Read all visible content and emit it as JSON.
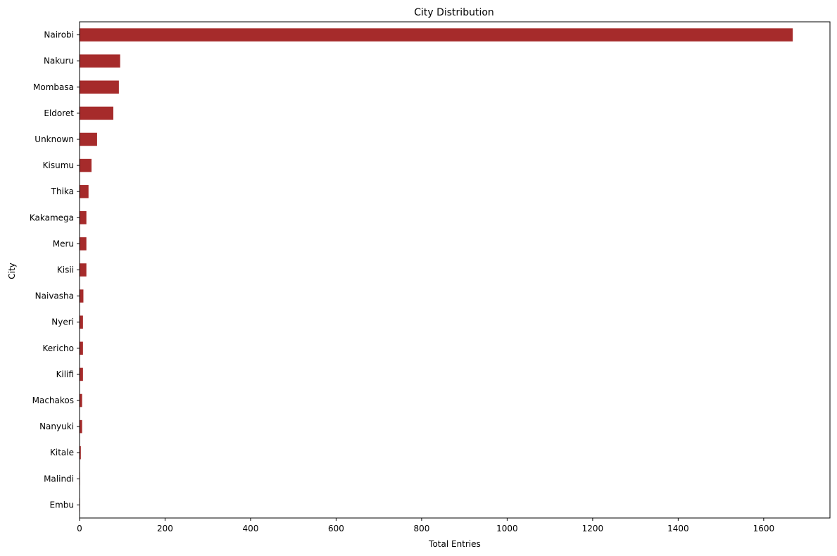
{
  "chart_data": {
    "type": "bar",
    "orientation": "horizontal",
    "title": "City Distribution",
    "xlabel": "Total Entries",
    "ylabel": "City",
    "xlim": [
      0,
      1755
    ],
    "xticks": [
      0,
      200,
      400,
      600,
      800,
      1000,
      1200,
      1400,
      1600
    ],
    "xtick_labels": [
      "0",
      "200",
      "400",
      "600",
      "800",
      "1000",
      "1200",
      "1400",
      "1600"
    ],
    "grid": false,
    "bar_color": "#A62B2B",
    "categories": [
      "Nairobi",
      "Nakuru",
      "Mombasa",
      "Eldoret",
      "Unknown",
      "Kisumu",
      "Thika",
      "Kakamega",
      "Meru",
      "Kisii",
      "Naivasha",
      "Nyeri",
      "Kericho",
      "Kilifi",
      "Machakos",
      "Nanyuki",
      "Kitale",
      "Malindi",
      "Embu"
    ],
    "values": [
      1668,
      95,
      92,
      79,
      41,
      28,
      21,
      16,
      16,
      16,
      9,
      8,
      8,
      8,
      6,
      6,
      3,
      1,
      1
    ]
  }
}
